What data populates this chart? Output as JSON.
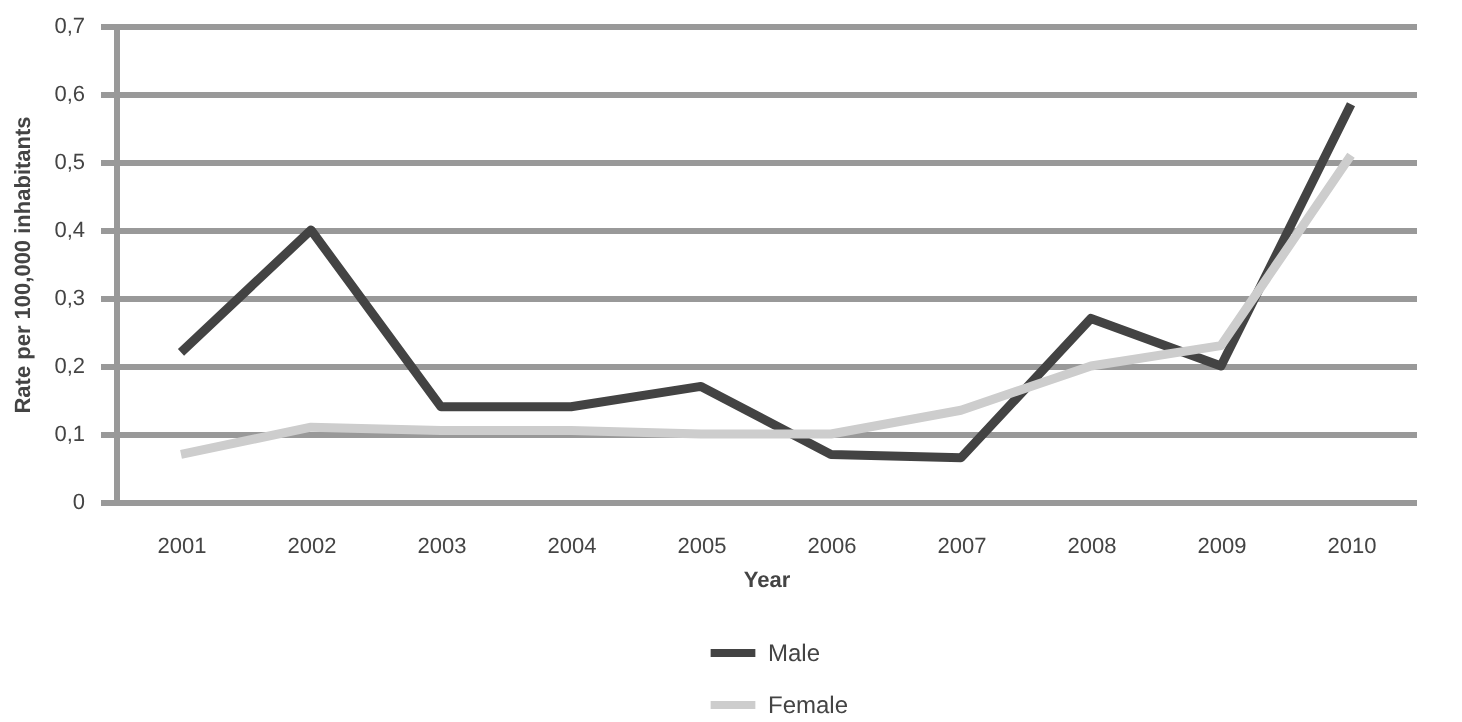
{
  "chart_data": {
    "type": "line",
    "xlabel": "Year",
    "ylabel": "Rate per 100,000 inhabitants",
    "categories": [
      "2001",
      "2002",
      "2003",
      "2004",
      "2005",
      "2006",
      "2007",
      "2008",
      "2009",
      "2010"
    ],
    "series": [
      {
        "name": "Male",
        "color": "#434343",
        "values": [
          0.22,
          0.4,
          0.14,
          0.14,
          0.17,
          0.07,
          0.065,
          0.27,
          0.2,
          0.585
        ]
      },
      {
        "name": "Female",
        "color": "#cdcdcd",
        "values": [
          0.07,
          0.11,
          0.105,
          0.105,
          0.1,
          0.1,
          0.135,
          0.2,
          0.23,
          0.51
        ]
      }
    ],
    "ylim": [
      0,
      0.7
    ],
    "yticks": [
      0,
      {
        "value": 0.1,
        "label": "0,1"
      },
      {
        "value": 0.2,
        "label": "0,2"
      },
      {
        "value": 0.3,
        "label": "0,3"
      },
      {
        "value": 0.4,
        "label": "0,4"
      },
      {
        "value": 0.5,
        "label": "0,5"
      },
      {
        "value": 0.6,
        "label": "0,6"
      },
      {
        "value": 0.7,
        "label": "0,7"
      }
    ],
    "grid": "y",
    "legend": "bottom",
    "marker": "none",
    "line_style": "solid"
  }
}
